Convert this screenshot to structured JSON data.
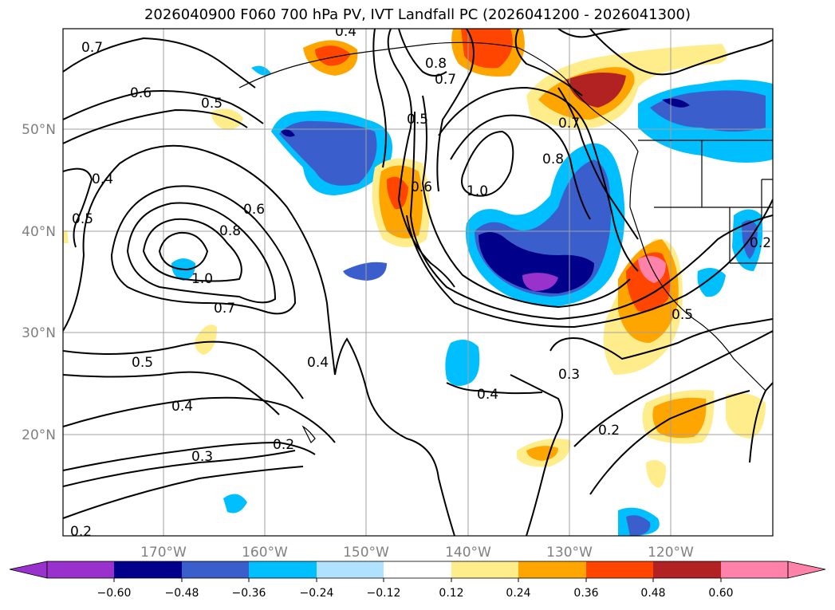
{
  "title": "2026040900 F060 700 hPa PV, IVT Landfall PC (2026041200 - 2026041300)",
  "map": {
    "lon_labels": [
      "170°W",
      "160°W",
      "150°W",
      "140°W",
      "130°W",
      "120°W"
    ],
    "lat_labels": [
      "50°N",
      "40°N",
      "30°N",
      "20°N"
    ],
    "grid": true,
    "contour_color": "#000000"
  },
  "contour_labels": [
    "0.7",
    "0.6",
    "0.5",
    "0.4",
    "0.5",
    "0.6",
    "0.8",
    "1.0",
    "0.7",
    "0.5",
    "0.4",
    "0.3",
    "0.2",
    "0.4",
    "0.8",
    "0.7",
    "0.5",
    "0.6",
    "1.0",
    "0.8",
    "0.7",
    "0.3",
    "0.4",
    "0.2",
    "0.5",
    "0.2",
    "0.2",
    "0.4"
  ],
  "colorbar": {
    "ticks": [
      "−0.60",
      "−0.48",
      "−0.36",
      "−0.24",
      "−0.12",
      "0.12",
      "0.24",
      "0.36",
      "0.48",
      "0.60"
    ],
    "colors": [
      "#9932cc",
      "#00008b",
      "#3a5fcd",
      "#00bfff",
      "#b0e2ff",
      "#ffffff",
      "#ffec8b",
      "#ffa500",
      "#ff4500",
      "#b22222",
      "#ff82ab"
    ]
  }
}
